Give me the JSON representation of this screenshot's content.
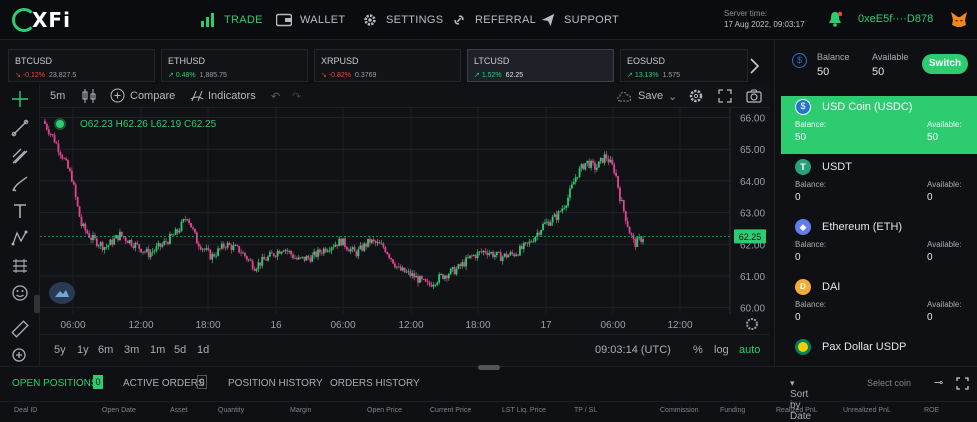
{
  "brand": {
    "logo_text": "XFi"
  },
  "nav": [
    {
      "label": "TRADE",
      "icon": "bar-chart-icon",
      "active": true
    },
    {
      "label": "WALLET",
      "icon": "wallet-icon"
    },
    {
      "label": "SETTINGS",
      "icon": "gear-icon"
    },
    {
      "label": "REFERRAL",
      "icon": "link-icon"
    },
    {
      "label": "SUPPORT",
      "icon": "paper-plane-icon"
    }
  ],
  "server": {
    "label": "Server time:",
    "time": "17 Aug 2022, 09:03:17"
  },
  "account": {
    "address": "0xeE5f····D878"
  },
  "tickers": [
    {
      "symbol": "BTCUSD",
      "change": "-0.12%",
      "price": "23,827.5",
      "up": false
    },
    {
      "symbol": "ETHUSD",
      "change": "0.48%",
      "price": "1,885.75",
      "up": true
    },
    {
      "symbol": "XRPUSD",
      "change": "-0.82%",
      "price": "0.3769",
      "up": false
    },
    {
      "symbol": "LTCUSD",
      "change": "1.52%",
      "price": "62.25",
      "up": true,
      "selected": true
    },
    {
      "symbol": "EOSUSD",
      "change": "13.13%",
      "price": "1.575",
      "up": true
    }
  ],
  "chart_toolbar": {
    "interval": "5m",
    "compare": "Compare",
    "indicators": "Indicators",
    "save": "Save"
  },
  "ohlc": {
    "o": "O62.23",
    "h": "H62.26",
    "l": "L62.19",
    "c": "C62.25"
  },
  "chart_data": {
    "type": "candlestick",
    "symbol": "LTCUSD",
    "interval": "5m",
    "last_price": "62.25",
    "y_ticks": [
      "66.00",
      "65.00",
      "64.00",
      "63.00",
      "62.00",
      "61.00",
      "60.00"
    ],
    "ylim": [
      59.8,
      66.3
    ],
    "x_ticks": [
      "06:00",
      "12:00",
      "18:00",
      "16",
      "06:00",
      "12:00",
      "18:00",
      "17",
      "06:00",
      "12:00"
    ],
    "path_points": [
      [
        0,
        65.9
      ],
      [
        4,
        65.4
      ],
      [
        8,
        64.8
      ],
      [
        12,
        64.1
      ],
      [
        14,
        63.3
      ],
      [
        16,
        62.6
      ],
      [
        20,
        62.2
      ],
      [
        26,
        61.9
      ],
      [
        32,
        62.3
      ],
      [
        38,
        62.0
      ],
      [
        44,
        61.7
      ],
      [
        50,
        62.0
      ],
      [
        56,
        62.4
      ],
      [
        60,
        62.9
      ],
      [
        64,
        62.1
      ],
      [
        70,
        61.6
      ],
      [
        76,
        62.0
      ],
      [
        82,
        61.8
      ],
      [
        88,
        61.3
      ],
      [
        94,
        61.6
      ],
      [
        100,
        61.9
      ],
      [
        106,
        61.5
      ],
      [
        112,
        61.6
      ],
      [
        118,
        61.9
      ],
      [
        124,
        62.1
      ],
      [
        130,
        61.7
      ],
      [
        136,
        62.1
      ],
      [
        142,
        61.9
      ],
      [
        148,
        61.2
      ],
      [
        154,
        61.0
      ],
      [
        160,
        60.7
      ],
      [
        166,
        61.0
      ],
      [
        172,
        61.2
      ],
      [
        178,
        61.6
      ],
      [
        184,
        61.8
      ],
      [
        190,
        61.6
      ],
      [
        196,
        61.7
      ],
      [
        202,
        62.0
      ],
      [
        208,
        62.6
      ],
      [
        214,
        62.9
      ],
      [
        218,
        63.4
      ],
      [
        222,
        64.2
      ],
      [
        226,
        64.6
      ],
      [
        230,
        64.4
      ],
      [
        234,
        64.8
      ],
      [
        238,
        64.3
      ],
      [
        240,
        63.5
      ],
      [
        244,
        62.4
      ],
      [
        246,
        62.0
      ],
      [
        250,
        62.25
      ]
    ]
  },
  "chart_bottom": {
    "ranges": [
      "5y",
      "1y",
      "6m",
      "3m",
      "1m",
      "5d",
      "1d"
    ],
    "time": "09:03:14 (UTC)",
    "pct": "%",
    "log": "log",
    "auto": "auto"
  },
  "balance_panel": {
    "balance_label": "Balance",
    "balance": "50",
    "available_label": "Available",
    "available": "50",
    "switch": "Switch"
  },
  "coins": [
    {
      "name": "USD Coin (USDC)",
      "balance_label": "Balance:",
      "balance": "50",
      "available_label": "Available:",
      "available": "50",
      "selected": true,
      "color": "#2775ca"
    },
    {
      "name": "USDT",
      "balance_label": "Balance:",
      "balance": "0",
      "available_label": "Available:",
      "available": "0",
      "color": "#26a17b"
    },
    {
      "name": "Ethereum (ETH)",
      "balance_label": "Balance:",
      "balance": "0",
      "available_label": "Available:",
      "available": "0",
      "color": "#627eea"
    },
    {
      "name": "DAI",
      "balance_label": "Balance:",
      "balance": "0",
      "available_label": "Available:",
      "available": "0",
      "color": "#f5ac37"
    },
    {
      "name": "Pax Dollar USDP",
      "color": "#00845d"
    }
  ],
  "positions_tabs": {
    "open": "OPEN POSITIONS",
    "open_count": "0",
    "active": "ACTIVE ORDERS",
    "active_count": "0",
    "history": "POSITION HISTORY",
    "orders": "ORDERS HISTORY",
    "sort": "Sort by Date",
    "select_coin": "Select coin"
  },
  "columns": [
    "Deal ID",
    "Open Date",
    "Asset",
    "Quantity",
    "Margin",
    "Open Price",
    "Current Price",
    "LST Liq. Price",
    "TP / SL",
    "Commission",
    "Funding",
    "Realized PnL",
    "Unrealized PnL",
    "ROE"
  ]
}
